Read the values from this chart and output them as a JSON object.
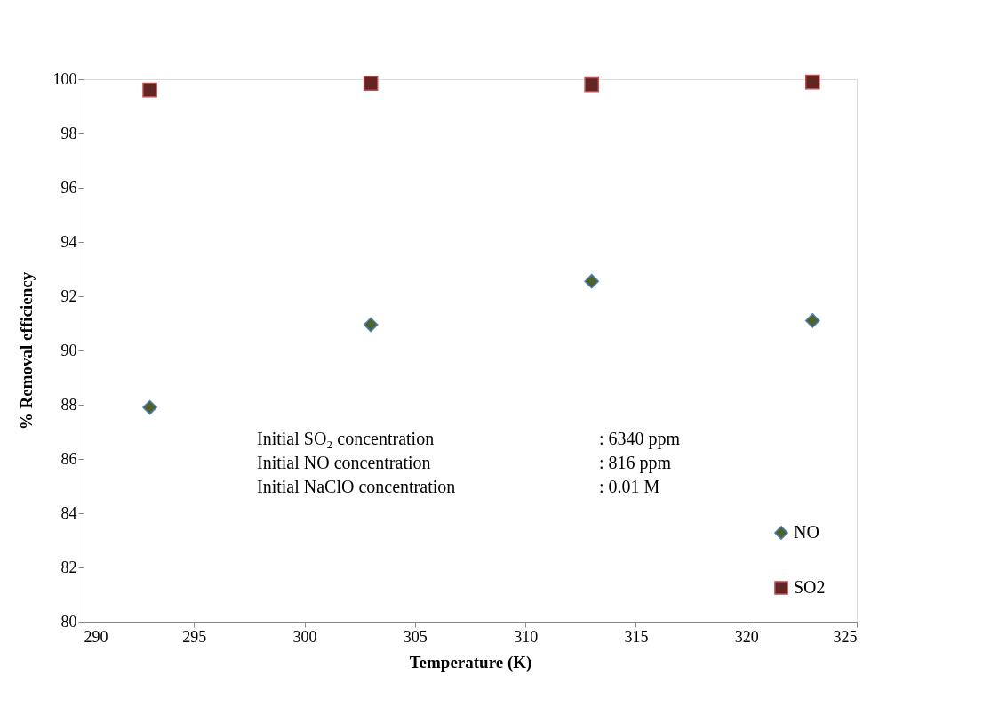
{
  "chart_data": {
    "type": "scatter",
    "xlabel": "Temperature (K)",
    "ylabel": "% Removal efficiency",
    "x": [
      293,
      303,
      313,
      323
    ],
    "series": [
      {
        "name": "NO",
        "color": "#4f6228",
        "marker": "diamond",
        "values": [
          87.9,
          90.95,
          92.55,
          91.1
        ]
      },
      {
        "name": "SO2",
        "color": "#632523",
        "marker": "square",
        "values": [
          99.6,
          99.85,
          99.8,
          99.9
        ]
      }
    ],
    "xlim": [
      290,
      325
    ],
    "xticks": [
      290,
      295,
      300,
      305,
      310,
      315,
      320,
      325
    ],
    "ylim": [
      80,
      100
    ],
    "yticks": [
      80,
      82,
      84,
      86,
      88,
      90,
      92,
      94,
      96,
      98,
      100
    ],
    "grid": false,
    "legend": "bottom right",
    "annotations": [
      "Initial SO₂ concentration",
      ": 6340 ppm",
      "Initial NO concentration",
      ": 816   ppm",
      "Initial NaClO concentration",
      ": 0.01 M"
    ]
  }
}
